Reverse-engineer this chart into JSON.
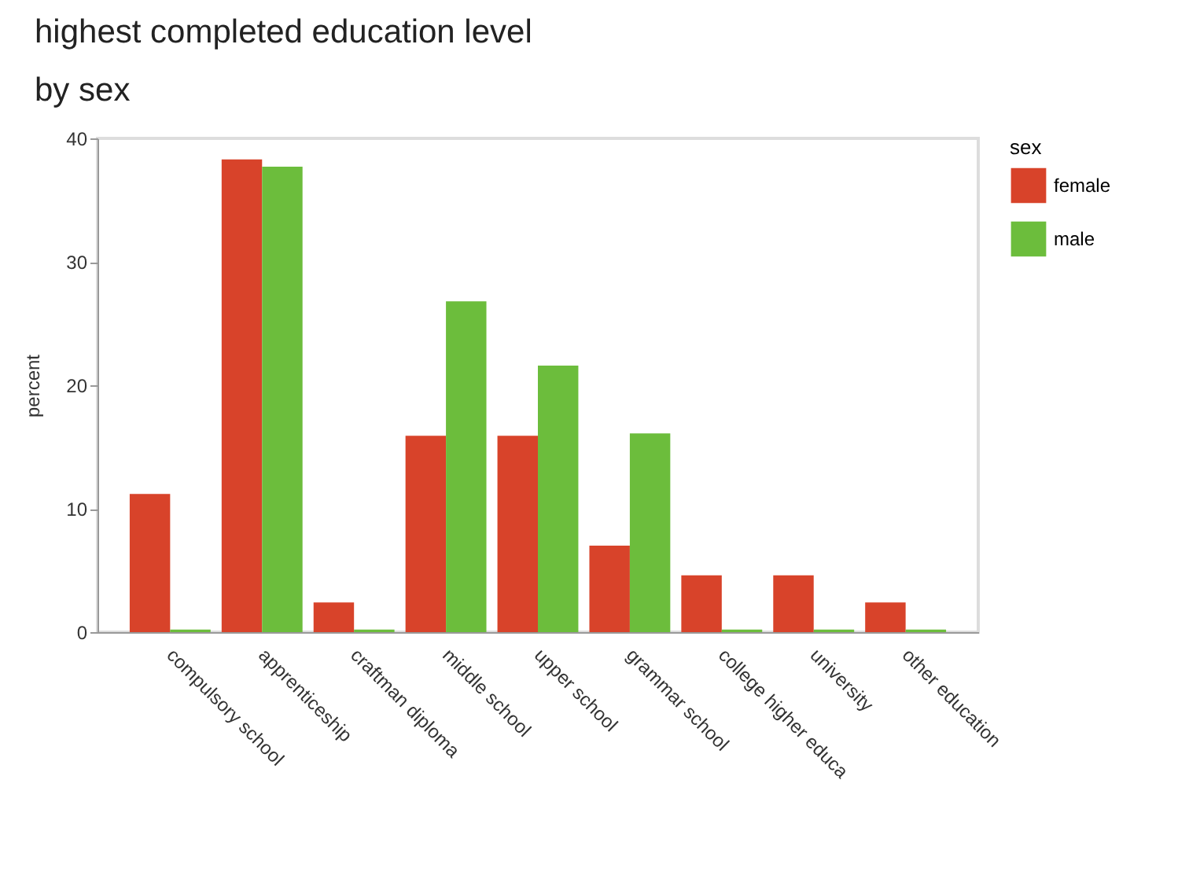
{
  "chart_data": {
    "type": "bar",
    "title": "highest completed education level",
    "subtitle": "by sex",
    "ylabel": "percent",
    "legend_title": "sex",
    "categories": [
      "compulsory school",
      "apprenticeship",
      "craftman diploma",
      "middle school",
      "upper school",
      "grammar school",
      "college higher educa",
      "university",
      "other education"
    ],
    "series": [
      {
        "name": "female",
        "color": "#d8432a",
        "values": [
          11.2,
          38.3,
          2.4,
          15.9,
          15.9,
          7.0,
          4.6,
          4.6,
          2.4
        ]
      },
      {
        "name": "male",
        "color": "#6cbd3c",
        "values": [
          0.2,
          37.7,
          0.2,
          26.8,
          21.6,
          16.1,
          0.2,
          0.2,
          0.2
        ]
      }
    ],
    "ylim": [
      0,
      40
    ],
    "yticks": [
      0,
      10,
      20,
      30,
      40
    ],
    "grid": false,
    "legend": "right"
  }
}
